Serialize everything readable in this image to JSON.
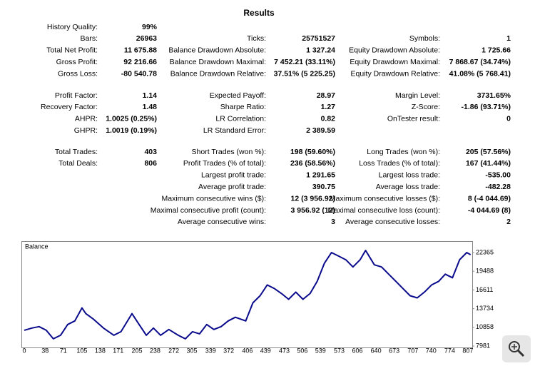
{
  "title": "Results",
  "blocks": [
    {
      "rows": [
        [
          {
            "label": "History Quality:",
            "value": "99%"
          },
          null,
          null
        ],
        [
          {
            "label": "Bars:",
            "value": "26963"
          },
          {
            "label": "Ticks:",
            "value": "25751527"
          },
          {
            "label": "Symbols:",
            "value": "1"
          }
        ],
        [
          {
            "label": "Total Net Profit:",
            "value": "11 675.88"
          },
          {
            "label": "Balance Drawdown Absolute:",
            "value": "1 327.24"
          },
          {
            "label": "Equity Drawdown Absolute:",
            "value": "1 725.66"
          }
        ],
        [
          {
            "label": "Gross Profit:",
            "value": "92 216.66"
          },
          {
            "label": "Balance Drawdown Maximal:",
            "value": "7 452.21 (33.11%)"
          },
          {
            "label": "Equity Drawdown Maximal:",
            "value": "7 868.67 (34.74%)"
          }
        ],
        [
          {
            "label": "Gross Loss:",
            "value": "-80 540.78"
          },
          {
            "label": "Balance Drawdown Relative:",
            "value": "37.51% (5 225.25)"
          },
          {
            "label": "Equity Drawdown Relative:",
            "value": "41.08% (5 768.41)"
          }
        ]
      ]
    },
    {
      "rows": [
        [
          {
            "label": "Profit Factor:",
            "value": "1.14"
          },
          {
            "label": "Expected Payoff:",
            "value": "28.97"
          },
          {
            "label": "Margin Level:",
            "value": "3731.65%"
          }
        ],
        [
          {
            "label": "Recovery Factor:",
            "value": "1.48"
          },
          {
            "label": "Sharpe Ratio:",
            "value": "1.27"
          },
          {
            "label": "Z-Score:",
            "value": "-1.86 (93.71%)"
          }
        ],
        [
          {
            "label": "AHPR:",
            "value": "1.0025 (0.25%)"
          },
          {
            "label": "LR Correlation:",
            "value": "0.82"
          },
          {
            "label": "OnTester result:",
            "value": "0"
          }
        ],
        [
          {
            "label": "GHPR:",
            "value": "1.0019 (0.19%)"
          },
          {
            "label": "LR Standard Error:",
            "value": "2 389.59"
          },
          null
        ]
      ]
    },
    {
      "rows": [
        [
          {
            "label": "Total Trades:",
            "value": "403"
          },
          {
            "label": "Short Trades (won %):",
            "value": "198 (59.60%)"
          },
          {
            "label": "Long Trades (won %):",
            "value": "205 (57.56%)"
          }
        ],
        [
          {
            "label": "Total Deals:",
            "value": "806"
          },
          {
            "label": "Profit Trades (% of total):",
            "value": "236 (58.56%)"
          },
          {
            "label": "Loss Trades (% of total):",
            "value": "167 (41.44%)"
          }
        ],
        [
          null,
          {
            "label": "Largest profit trade:",
            "value": "1 291.65"
          },
          {
            "label": "Largest loss trade:",
            "value": "-535.00"
          }
        ],
        [
          null,
          {
            "label": "Average profit trade:",
            "value": "390.75"
          },
          {
            "label": "Average loss trade:",
            "value": "-482.28"
          }
        ],
        [
          null,
          {
            "label": "Maximum consecutive wins ($):",
            "value": "12 (3 956.92)"
          },
          {
            "label": "Maximum consecutive losses ($):",
            "value": "8 (-4 044.69)"
          }
        ],
        [
          null,
          {
            "label": "Maximal consecutive profit (count):",
            "value": "3 956.92 (12)"
          },
          {
            "label": "Maximal consecutive loss (count):",
            "value": "-4 044.69 (8)"
          }
        ],
        [
          null,
          {
            "label": "Average consecutive wins:",
            "value": "3"
          },
          {
            "label": "Average consecutive losses:",
            "value": "2"
          }
        ]
      ]
    }
  ],
  "chart_data": {
    "type": "line",
    "title": "Balance",
    "color": "#0a0a8c",
    "x": [
      0,
      14,
      27,
      40,
      53,
      66,
      79,
      92,
      105,
      112,
      125,
      144,
      163,
      176,
      196,
      209,
      222,
      235,
      248,
      263,
      280,
      293,
      306,
      319,
      332,
      345,
      358,
      371,
      384,
      403,
      416,
      429,
      442,
      455,
      468,
      481,
      494,
      507,
      520,
      533,
      546,
      559,
      572,
      585,
      598,
      611,
      621,
      637,
      650,
      663,
      676,
      689,
      702,
      715,
      728,
      741,
      754,
      766,
      779,
      792,
      805,
      812
    ],
    "values": [
      10410,
      10750,
      10970,
      10410,
      9090,
      9640,
      11300,
      11850,
      13840,
      12960,
      12180,
      10750,
      9640,
      10190,
      12960,
      11300,
      9640,
      10750,
      9640,
      10530,
      9640,
      9090,
      10190,
      9860,
      11300,
      10530,
      10970,
      11850,
      12410,
      11850,
      14620,
      15720,
      17380,
      16830,
      16060,
      15170,
      16280,
      15170,
      16060,
      17940,
      20700,
      22360,
      21810,
      21250,
      20150,
      21250,
      22690,
      20480,
      20150,
      19040,
      17940,
      16830,
      15720,
      15390,
      16280,
      17380,
      17940,
      19040,
      18490,
      21250,
      22360,
      22030
    ],
    "xlim": [
      0,
      815
    ],
    "ylim": [
      7981,
      23900
    ],
    "xticks": [
      0,
      38,
      71,
      105,
      138,
      171,
      205,
      238,
      272,
      305,
      339,
      372,
      406,
      439,
      473,
      506,
      539,
      573,
      606,
      640,
      673,
      707,
      740,
      774,
      807
    ],
    "yticks": [
      7981,
      10858,
      13734,
      16611,
      19488,
      22365
    ]
  }
}
